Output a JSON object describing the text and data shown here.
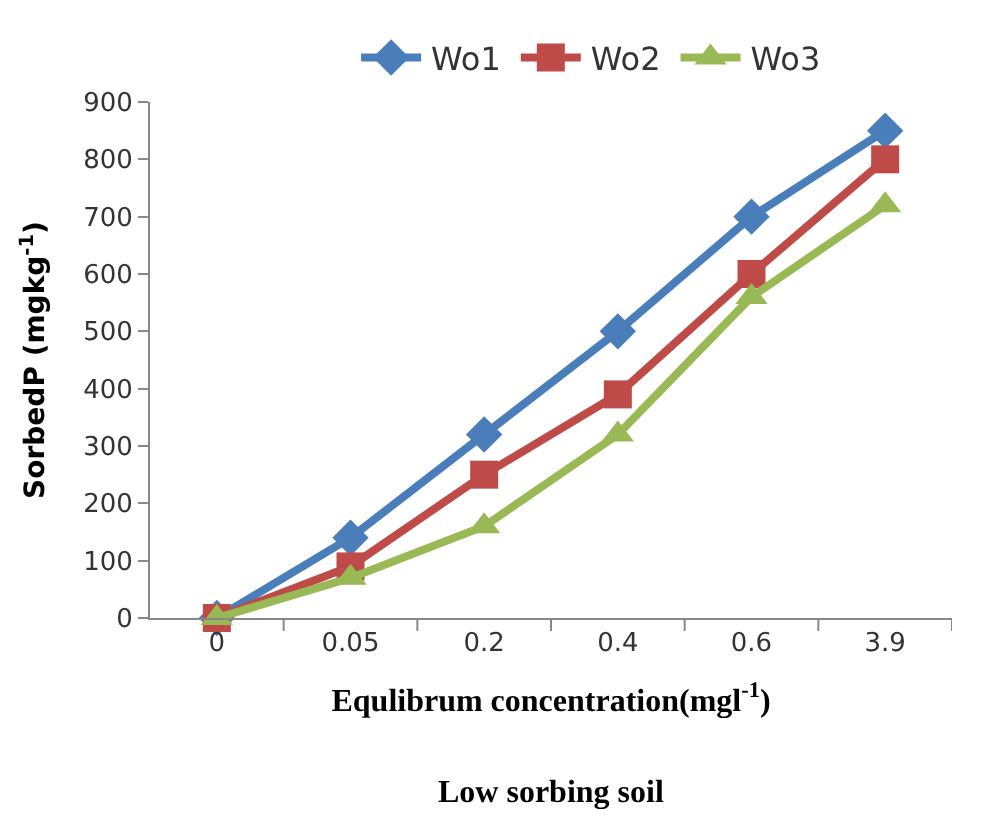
{
  "chart_data": {
    "type": "line",
    "categories": [
      "0",
      "0.05",
      "0.2",
      "0.4",
      "0.6",
      "3.9"
    ],
    "series": [
      {
        "name": "Wo1",
        "color": "#4a7ebb",
        "marker": "diamond",
        "values": [
          0,
          140,
          320,
          500,
          700,
          850
        ]
      },
      {
        "name": "Wo2",
        "color": "#be4b48",
        "marker": "square",
        "values": [
          0,
          90,
          250,
          390,
          600,
          800
        ]
      },
      {
        "name": "Wo3",
        "color": "#98b954",
        "marker": "triangle",
        "values": [
          0,
          70,
          160,
          320,
          560,
          720
        ]
      }
    ],
    "xlabel": "Equlibrum concentration(mgl$^{-1}$)",
    "ylabel": "SorbedP (mgkg$^{-1}$)",
    "ylim": [
      0,
      900
    ],
    "yticks": [
      0,
      100,
      200,
      300,
      400,
      500,
      600,
      700,
      800,
      900
    ],
    "annotations": [
      "Low sorbing soil"
    ],
    "legend": "top",
    "line_style": "solid"
  }
}
